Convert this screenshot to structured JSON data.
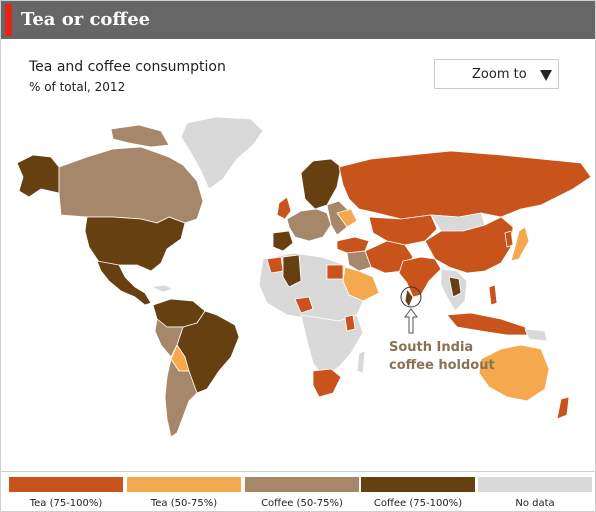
{
  "header": {
    "title": "Tea or coffee"
  },
  "map": {
    "title": "Tea and coffee consumption",
    "subtitle": "% of total, 2012"
  },
  "zoom": {
    "label": "Zoom to"
  },
  "annotation": {
    "line1": "South India",
    "line2": "coffee holdout"
  },
  "colors": {
    "tea_high": "#c9541b",
    "tea_mid": "#f4a94e",
    "coffee_mid": "#a7876a",
    "coffee_high": "#674011",
    "no_data": "#d9d9d9"
  },
  "legend": [
    {
      "label": "Tea (75-100%)",
      "color": "#c9541b"
    },
    {
      "label": "Tea (50-75%)",
      "color": "#f4a94e"
    },
    {
      "label": "Coffee (50-75%)",
      "color": "#a7876a"
    },
    {
      "label": "Coffee (75-100%)",
      "color": "#674011"
    },
    {
      "label": "No data",
      "color": "#d9d9d9"
    }
  ]
}
